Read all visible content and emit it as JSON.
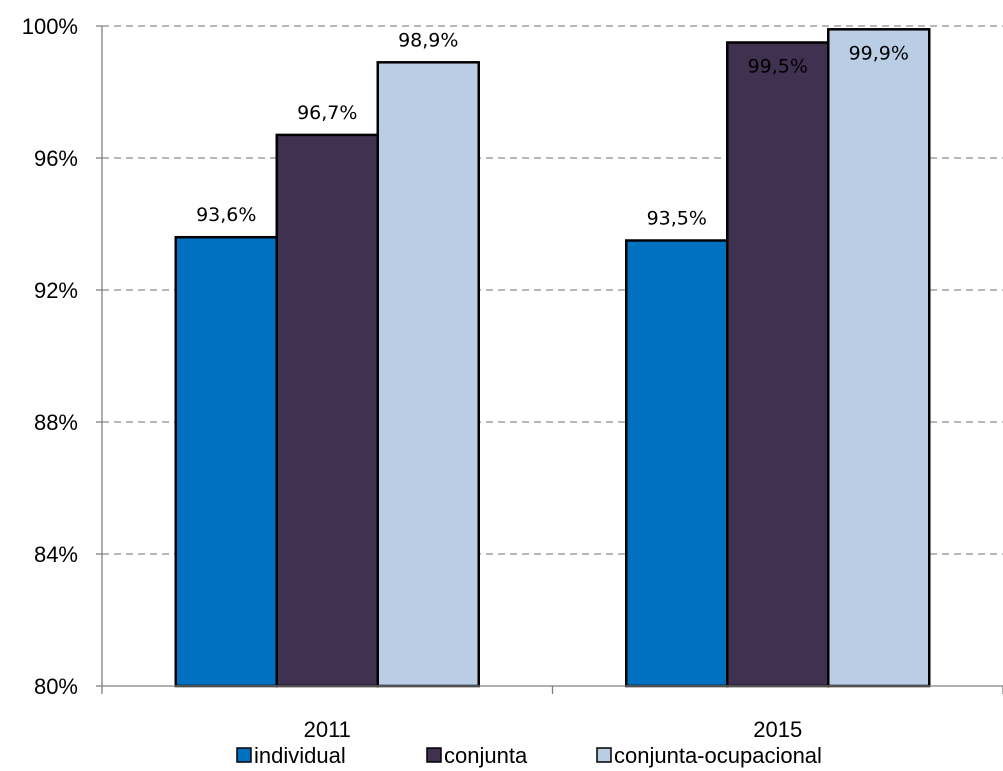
{
  "chart_data": {
    "type": "bar",
    "categories": [
      "2011",
      "2015"
    ],
    "series": [
      {
        "name": "individual",
        "values": [
          93.6,
          93.5
        ],
        "labels": [
          "93,6%",
          "93,5%"
        ],
        "color": "#0070C0"
      },
      {
        "name": "conjunta",
        "values": [
          96.7,
          99.5
        ],
        "labels": [
          "96,7%",
          "99,5%"
        ],
        "color": "#403151"
      },
      {
        "name": "conjunta-ocupacional",
        "values": [
          98.9,
          99.9
        ],
        "labels": [
          "98,9%",
          "99,9%"
        ],
        "color": "#B9CDE5"
      }
    ],
    "ylim": [
      80,
      100
    ],
    "yticks": [
      80,
      84,
      88,
      92,
      96,
      100
    ],
    "ytick_labels": [
      "80%",
      "84%",
      "88%",
      "92%",
      "96%",
      "100%"
    ],
    "grid": true,
    "grid_style": "dashed",
    "legend_position": "bottom",
    "title": "",
    "xlabel": "",
    "ylabel": ""
  }
}
